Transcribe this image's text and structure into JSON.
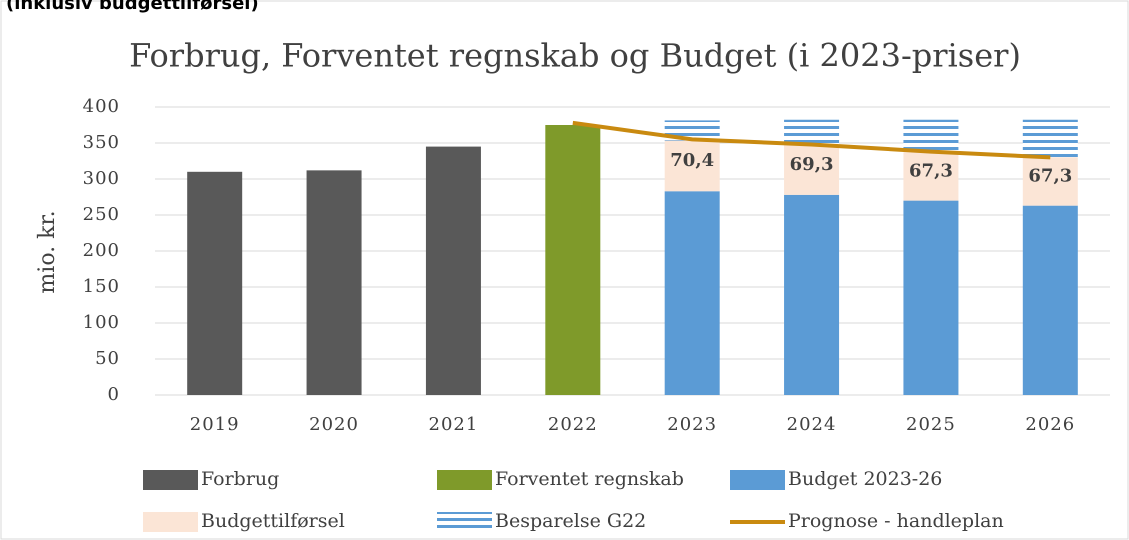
{
  "heading": "(inklusiv budgettilførsel)",
  "chart_data": {
    "type": "bar",
    "title": "Forbrug, Forventet regnskab og Budget (i 2023-priser)",
    "y_label": "mio. kr.",
    "categories": [
      "2019",
      "2020",
      "2021",
      "2022",
      "2023",
      "2024",
      "2025",
      "2026"
    ],
    "ylim": [
      0,
      400
    ],
    "yticks": [
      0,
      50,
      100,
      150,
      200,
      250,
      300,
      350,
      400
    ],
    "grid": true,
    "series": [
      {
        "name": "Forbrug",
        "type": "bar",
        "color": "#595959",
        "values": [
          310,
          312,
          345,
          null,
          null,
          null,
          null,
          null
        ]
      },
      {
        "name": "Forventet regnskab",
        "type": "bar",
        "color": "#7f9a2a",
        "values": [
          null,
          null,
          null,
          375,
          null,
          null,
          null,
          null
        ]
      },
      {
        "name": "Budget 2023-26",
        "type": "bar",
        "color": "#5b9bd5",
        "values": [
          null,
          null,
          null,
          null,
          283,
          278,
          270,
          263
        ]
      },
      {
        "name": "Budgettilførsel",
        "type": "bar",
        "color": "#fbe5d6",
        "values": [
          null,
          null,
          null,
          null,
          70.4,
          69.3,
          67.3,
          67.3
        ],
        "value_labels": [
          null,
          null,
          null,
          null,
          "70,4",
          "69,3",
          "67,3",
          "67,3"
        ]
      },
      {
        "name": "Besparelse G22",
        "type": "bar",
        "color": "#5b9bd5",
        "pattern": "stripes",
        "values": [
          null,
          null,
          null,
          null,
          28,
          35,
          45,
          52
        ]
      },
      {
        "name": "Prognose - handleplan",
        "type": "line",
        "color": "#c98a10",
        "values": [
          null,
          null,
          null,
          378,
          355,
          348,
          338,
          330
        ]
      }
    ]
  }
}
